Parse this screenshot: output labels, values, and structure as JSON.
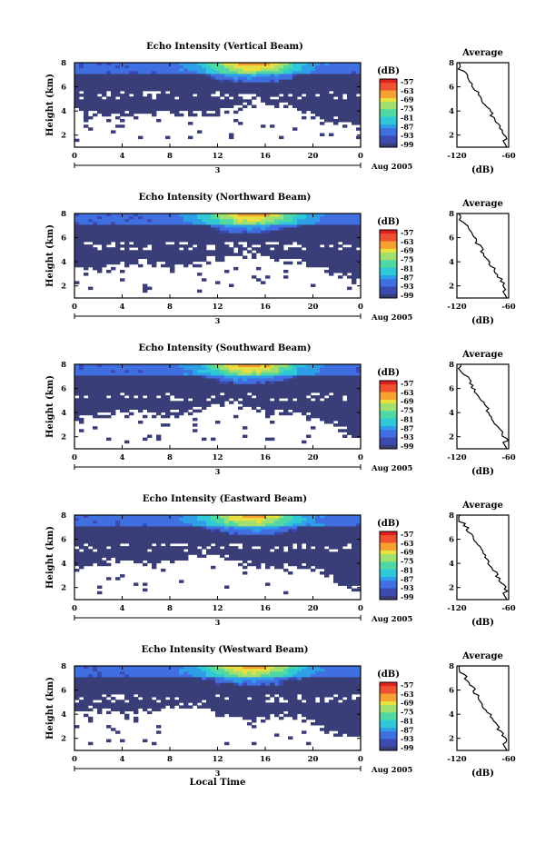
{
  "figure": {
    "time_axis_label": "Local Time",
    "date_label": "Aug 2005",
    "date_day": "3",
    "avg_x_label": "(dB)"
  },
  "chart_data": [
    {
      "type": "heatmap",
      "title": "Echo Intensity (Vertical Beam)",
      "xlabel": "",
      "ylabel": "Height (km)",
      "xlim": [
        0,
        24
      ],
      "xticks": [
        "0",
        "4",
        "8",
        "12",
        "16",
        "20",
        "0"
      ],
      "ylim": [
        1,
        8
      ],
      "yticks": [
        "2",
        "4",
        "6",
        "8"
      ],
      "colorbar": {
        "unit": "(dB)",
        "ticks": [
          "-57",
          "-63",
          "-69",
          "-75",
          "-81",
          "-87",
          "-93",
          "-99"
        ]
      },
      "average": {
        "title": "Average",
        "xlim": [
          -120,
          -60
        ],
        "xticks": [
          "-120",
          "-60"
        ],
        "yticks": [
          "2",
          "4",
          "6",
          "8"
        ]
      }
    },
    {
      "type": "heatmap",
      "title": "Echo Intensity (Northward Beam)",
      "xlabel": "",
      "ylabel": "Height (km)",
      "xlim": [
        0,
        24
      ],
      "xticks": [
        "0",
        "4",
        "8",
        "12",
        "16",
        "20",
        "0"
      ],
      "ylim": [
        1,
        8
      ],
      "yticks": [
        "2",
        "4",
        "6",
        "8"
      ],
      "colorbar": {
        "unit": "(dB)",
        "ticks": [
          "-57",
          "-63",
          "-69",
          "-75",
          "-81",
          "-87",
          "-93",
          "-99"
        ]
      },
      "average": {
        "title": "Average",
        "xlim": [
          -120,
          -60
        ],
        "xticks": [
          "-120",
          "-60"
        ],
        "yticks": [
          "2",
          "4",
          "6",
          "8"
        ]
      }
    },
    {
      "type": "heatmap",
      "title": "Echo Intensity (Southward Beam)",
      "xlabel": "",
      "ylabel": "Height (km)",
      "xlim": [
        0,
        24
      ],
      "xticks": [
        "0",
        "4",
        "8",
        "12",
        "16",
        "20",
        "0"
      ],
      "ylim": [
        1,
        8
      ],
      "yticks": [
        "2",
        "4",
        "6",
        "8"
      ],
      "colorbar": {
        "unit": "(dB)",
        "ticks": [
          "-57",
          "-63",
          "-69",
          "-75",
          "-81",
          "-87",
          "-93",
          "-99"
        ]
      },
      "average": {
        "title": "Average",
        "xlim": [
          -120,
          -60
        ],
        "xticks": [
          "-120",
          "-60"
        ],
        "yticks": [
          "2",
          "4",
          "6",
          "8"
        ]
      }
    },
    {
      "type": "heatmap",
      "title": "Echo Intensity (Eastward Beam)",
      "xlabel": "",
      "ylabel": "Height (km)",
      "xlim": [
        0,
        24
      ],
      "xticks": [
        "0",
        "4",
        "8",
        "12",
        "16",
        "20",
        "0"
      ],
      "ylim": [
        1,
        8
      ],
      "yticks": [
        "2",
        "4",
        "6",
        "8"
      ],
      "colorbar": {
        "unit": "(dB)",
        "ticks": [
          "-57",
          "-63",
          "-69",
          "-75",
          "-81",
          "-87",
          "-93",
          "-99"
        ]
      },
      "average": {
        "title": "Average",
        "xlim": [
          -120,
          -60
        ],
        "xticks": [
          "-120",
          "-60"
        ],
        "yticks": [
          "2",
          "4",
          "6",
          "8"
        ]
      }
    },
    {
      "type": "heatmap",
      "title": "Echo Intensity (Westward Beam)",
      "xlabel": "Local Time",
      "ylabel": "Height (km)",
      "xlim": [
        0,
        24
      ],
      "xticks": [
        "0",
        "4",
        "8",
        "12",
        "16",
        "20",
        "0"
      ],
      "ylim": [
        1,
        8
      ],
      "yticks": [
        "2",
        "4",
        "6",
        "8"
      ],
      "colorbar": {
        "unit": "(dB)",
        "ticks": [
          "-57",
          "-63",
          "-69",
          "-75",
          "-81",
          "-87",
          "-93",
          "-99"
        ]
      },
      "average": {
        "title": "Average",
        "xlim": [
          -120,
          -60
        ],
        "xticks": [
          "-120",
          "-60"
        ],
        "yticks": [
          "2",
          "4",
          "6",
          "8"
        ]
      }
    }
  ],
  "colors": {
    "low": "#3a3e78",
    "scale": [
      "#3a3e78",
      "#3b4ab0",
      "#3f6fe0",
      "#2f9ee8",
      "#2ec8d6",
      "#4fd8a4",
      "#9fe070",
      "#e8e040",
      "#f5a030",
      "#ee5030",
      "#e02020"
    ]
  }
}
